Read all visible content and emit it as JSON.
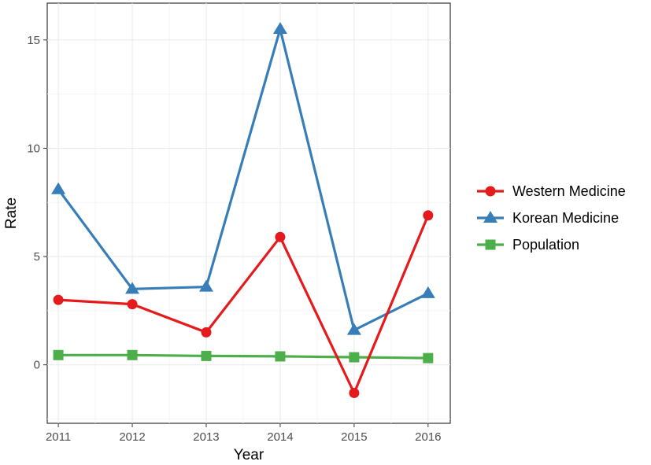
{
  "chart_data": {
    "type": "line",
    "x": [
      2011,
      2012,
      2013,
      2014,
      2015,
      2016
    ],
    "xlabel": "Year",
    "ylabel": "Rate",
    "xticks": [
      "2011",
      "2012",
      "2013",
      "2014",
      "2015",
      "2016"
    ],
    "yticks": [
      0,
      5,
      10,
      15
    ],
    "ytick_labels": [
      "0",
      "5",
      "10",
      "15"
    ],
    "xlim": [
      2010.85,
      2016.3
    ],
    "ylim": [
      -2.7,
      16.7
    ],
    "grid": true,
    "legend_position": "right",
    "series": [
      {
        "name": "Western Medicine",
        "marker": "circle",
        "color": "#e41a1c",
        "values": [
          3.0,
          2.8,
          1.5,
          5.9,
          -1.3,
          6.9
        ]
      },
      {
        "name": "Korean Medicine",
        "marker": "triangle",
        "color": "#377eb8",
        "values": [
          8.1,
          3.5,
          3.6,
          15.5,
          1.6,
          3.3
        ]
      },
      {
        "name": "Population",
        "marker": "square",
        "color": "#4daf4a",
        "values": [
          0.45,
          0.45,
          0.41,
          0.39,
          0.35,
          0.31
        ]
      }
    ]
  }
}
